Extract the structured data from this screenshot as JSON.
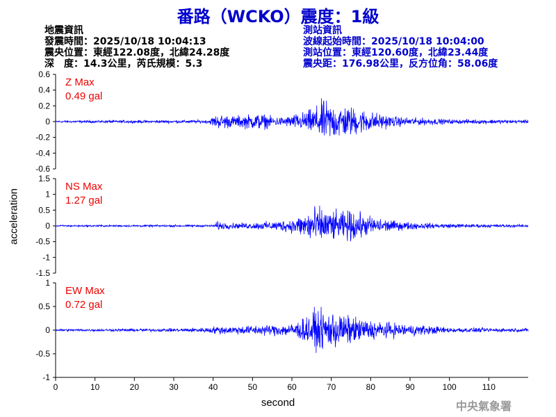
{
  "title": "番路（WCKO）震度：1級",
  "info_left": {
    "heading": "地震資訊",
    "origin_time": "發震時間：2025/10/18 10:04:13",
    "epicenter": "震央位置：東經122.08度，北緯24.28度",
    "depth_magnitude": "深　度：14.3公里，芮氏規模：5.3"
  },
  "info_right": {
    "heading": "測站資訊",
    "waveform_start": "波線起始時間：2025/10/18 10:04:00",
    "station_location": "測站位置：東經120.60度，北緯23.44度",
    "distance_azimuth": "震央距：176.98公里，反方位角：58.06度"
  },
  "watermark": "中央氣象署",
  "colors": {
    "title": "#0000cc",
    "waveform": "#0000ff",
    "max_label": "#ee0000",
    "info_right": "#0000cc"
  },
  "chart_data": {
    "type": "line",
    "xlabel": "second",
    "ylabel": "acceleration",
    "xlim": [
      0,
      120
    ],
    "x_ticks": [
      0,
      10,
      20,
      30,
      40,
      50,
      60,
      70,
      80,
      90,
      100,
      110
    ],
    "panels": [
      {
        "component": "Z",
        "max_label": "Z Max",
        "max_value": "0.49 gal",
        "ylim": [
          -0.6,
          0.6
        ],
        "y_ticks": [
          0.6,
          0.4,
          0.2,
          0,
          -0.2,
          -0.4,
          -0.6
        ],
        "y_tick_labels": [
          "0.6",
          "0.4",
          "0.2",
          "0",
          "-0.2",
          "-0.4",
          "-0.6"
        ],
        "envelope_points": [
          [
            0,
            0.02
          ],
          [
            39,
            0.03
          ],
          [
            40,
            0.1
          ],
          [
            41,
            0.12
          ],
          [
            43,
            0.13
          ],
          [
            45,
            0.1
          ],
          [
            48,
            0.12
          ],
          [
            52,
            0.15
          ],
          [
            55,
            0.09
          ],
          [
            58,
            0.08
          ],
          [
            60,
            0.12
          ],
          [
            62,
            0.15
          ],
          [
            65,
            0.22
          ],
          [
            68,
            0.38
          ],
          [
            70,
            0.33
          ],
          [
            73,
            0.3
          ],
          [
            76,
            0.25
          ],
          [
            80,
            0.18
          ],
          [
            85,
            0.1
          ],
          [
            90,
            0.07
          ],
          [
            95,
            0.06
          ],
          [
            100,
            0.04
          ],
          [
            110,
            0.04
          ],
          [
            120,
            0.03
          ]
        ]
      },
      {
        "component": "NS",
        "max_label": "NS Max",
        "max_value": "1.27 gal",
        "ylim": [
          -1.5,
          1.5
        ],
        "y_ticks": [
          1.5,
          1,
          0.5,
          0,
          -0.5,
          -1,
          -1.5
        ],
        "y_tick_labels": [
          "1.5",
          "1",
          "0.5",
          "0",
          "-0.5",
          "-1",
          "-1.5"
        ],
        "envelope_points": [
          [
            0,
            0.04
          ],
          [
            40,
            0.05
          ],
          [
            41,
            0.2
          ],
          [
            43,
            0.15
          ],
          [
            46,
            0.12
          ],
          [
            50,
            0.15
          ],
          [
            55,
            0.2
          ],
          [
            60,
            0.3
          ],
          [
            63,
            0.55
          ],
          [
            65,
            0.9
          ],
          [
            67,
            0.8
          ],
          [
            70,
            0.7
          ],
          [
            72,
            0.6
          ],
          [
            76,
            0.7
          ],
          [
            78,
            0.5
          ],
          [
            82,
            0.35
          ],
          [
            87,
            0.2
          ],
          [
            95,
            0.12
          ],
          [
            105,
            0.08
          ],
          [
            120,
            0.06
          ]
        ]
      },
      {
        "component": "EW",
        "max_label": "EW Max",
        "max_value": "0.72 gal",
        "ylim": [
          -1,
          1
        ],
        "y_ticks": [
          1,
          0.5,
          0,
          -0.5,
          -1
        ],
        "y_tick_labels": [
          "1",
          "0.5",
          "0",
          "-0.5",
          "-1"
        ],
        "envelope_points": [
          [
            0,
            0.03
          ],
          [
            30,
            0.05
          ],
          [
            38,
            0.07
          ],
          [
            41,
            0.12
          ],
          [
            45,
            0.12
          ],
          [
            50,
            0.14
          ],
          [
            55,
            0.16
          ],
          [
            60,
            0.2
          ],
          [
            63,
            0.35
          ],
          [
            65,
            0.55
          ],
          [
            68,
            0.55
          ],
          [
            70,
            0.6
          ],
          [
            72,
            0.5
          ],
          [
            75,
            0.4
          ],
          [
            78,
            0.35
          ],
          [
            82,
            0.25
          ],
          [
            87,
            0.2
          ],
          [
            93,
            0.15
          ],
          [
            100,
            0.08
          ],
          [
            110,
            0.06
          ],
          [
            120,
            0.05
          ]
        ]
      }
    ]
  }
}
